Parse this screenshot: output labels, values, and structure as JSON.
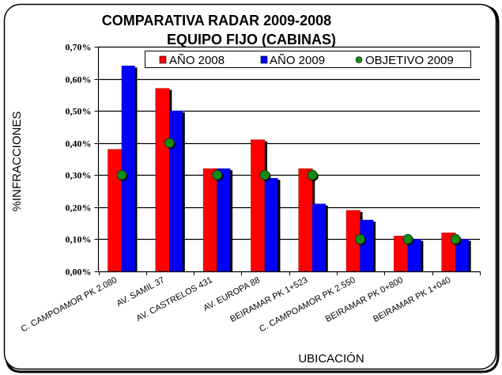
{
  "chart_data": {
    "type": "bar",
    "title": "COMPARATIVA RADAR 2009-2008",
    "subtitle": "EQUIPO FIJO (CABINAS)",
    "xlabel": "UBICACIÓN",
    "ylabel": "%INFRACCIONES",
    "ylim": [
      0,
      0.7
    ],
    "ytick_values": [
      0,
      0.1,
      0.2,
      0.3,
      0.4,
      0.5,
      0.6,
      0.7
    ],
    "yticks": [
      "0,00%",
      "0,10%",
      "0,20%",
      "0,30%",
      "0,40%",
      "0,50%",
      "0,60%",
      "0,70%"
    ],
    "grid": true,
    "legend_position": "top",
    "categories": [
      "C. CAMPOAMOR PK 2.080",
      "AV. SAMIL 37",
      "AV. CASTRELOS 431",
      "AV. EUROPA 88",
      "BEIRAMAR PK 1+523",
      "C. CAMPOAMOR PK 2.550",
      "BEIRAMAR PK 0+800",
      "BEIRAMAR PK 1+040"
    ],
    "series": [
      {
        "name": "AÑO 2008",
        "kind": "bar",
        "color": "#ff0000",
        "values": [
          0.38,
          0.57,
          0.32,
          0.41,
          0.32,
          0.19,
          0.11,
          0.12
        ]
      },
      {
        "name": "AÑO 2009",
        "kind": "bar",
        "color": "#0000ff",
        "values": [
          0.64,
          0.5,
          0.32,
          0.29,
          0.21,
          0.16,
          0.1,
          0.1
        ]
      },
      {
        "name": "OBJETIVO 2009",
        "kind": "marker",
        "color": "#138a13",
        "values": [
          0.3,
          0.4,
          0.3,
          0.3,
          0.3,
          0.1,
          0.1,
          0.1
        ]
      }
    ]
  }
}
